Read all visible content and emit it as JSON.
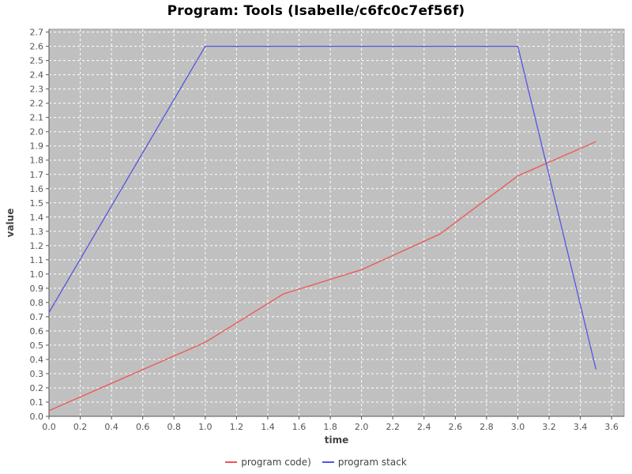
{
  "chart_data": {
    "type": "line",
    "title": "Program: Tools (Isabelle/c6fc0c7ef56f)",
    "xlabel": "time",
    "ylabel": "value",
    "xlim": [
      0,
      3.68
    ],
    "ylim": [
      0,
      2.72
    ],
    "x_ticks": [
      0.0,
      0.2,
      0.4,
      0.6,
      0.8,
      1.0,
      1.2,
      1.4,
      1.6,
      1.8,
      2.0,
      2.2,
      2.4,
      2.6,
      2.8,
      3.0,
      3.2,
      3.4,
      3.6
    ],
    "y_ticks": [
      0.0,
      0.1,
      0.2,
      0.3,
      0.4,
      0.5,
      0.6,
      0.7,
      0.8,
      0.9,
      1.0,
      1.1,
      1.2,
      1.3,
      1.4,
      1.5,
      1.6,
      1.7,
      1.8,
      1.9,
      2.0,
      2.1,
      2.2,
      2.3,
      2.4,
      2.5,
      2.6,
      2.7
    ],
    "grid": true,
    "legend_position": "bottom",
    "colors": {
      "plot_background": "#c0c0c0",
      "grid": "#ffffff",
      "plot_border": "#999999",
      "axis": "#555555",
      "tick_label": "#555555",
      "axis_label": "#444444",
      "title": "#000000",
      "legend_text": "#444444"
    },
    "series": [
      {
        "name": "program code)",
        "color": "#ee5555",
        "points": [
          [
            0.0,
            0.04
          ],
          [
            1.0,
            0.52
          ],
          [
            1.5,
            0.86
          ],
          [
            2.0,
            1.03
          ],
          [
            2.5,
            1.28
          ],
          [
            3.0,
            1.69
          ],
          [
            3.5,
            1.93
          ]
        ]
      },
      {
        "name": "program stack",
        "color": "#5555e0",
        "points": [
          [
            0.0,
            0.73
          ],
          [
            1.0,
            2.6
          ],
          [
            3.0,
            2.6
          ],
          [
            3.5,
            0.33
          ]
        ]
      }
    ]
  }
}
